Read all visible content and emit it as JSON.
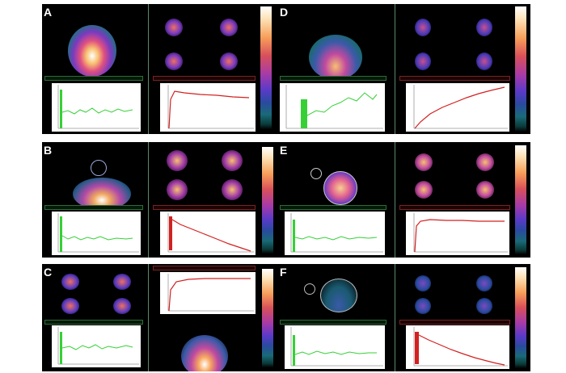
{
  "panels": [
    {
      "id": "A",
      "label": "A",
      "layout": "top",
      "big": "scan",
      "curves": [
        "green",
        "red-rise"
      ]
    },
    {
      "id": "B",
      "label": "B",
      "layout": "top",
      "big": "scan",
      "curves": [
        "green",
        "red-drop"
      ]
    },
    {
      "id": "C",
      "label": "C",
      "layout": "bottom",
      "big": "scan",
      "curves": [
        "green",
        "red-rise"
      ]
    },
    {
      "id": "D",
      "label": "D",
      "layout": "top",
      "big": "scan",
      "curves": [
        "green",
        "red-rise"
      ]
    },
    {
      "id": "E",
      "label": "E",
      "layout": "top",
      "big": "scan",
      "curves": [
        "green",
        "red-rise"
      ]
    },
    {
      "id": "F",
      "label": "F",
      "layout": "top",
      "big": "scan",
      "curves": [
        "green",
        "red-drop"
      ]
    }
  ],
  "colors": {
    "green": "#36d036",
    "red": "#d42020",
    "panel_bg": "#000000"
  }
}
